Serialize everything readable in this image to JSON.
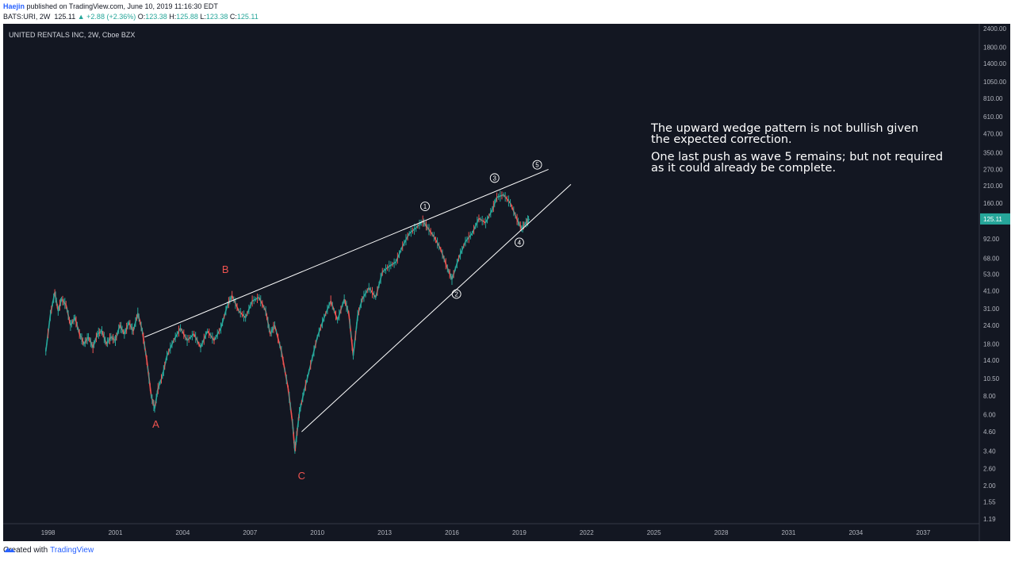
{
  "header": {
    "author": "Haejin",
    "published_text": "published on TradingView.com, June 10, 2019 11:16:30 EDT",
    "symbol": "BATS:URI, 2W",
    "last": "125.11",
    "change": "+2.88 (+2.36%)",
    "open_label": "O:",
    "open": "123.38",
    "high_label": "H:",
    "high": "125.88",
    "low_label": "L:",
    "low": "123.38",
    "close_label": "C:",
    "close": "125.11"
  },
  "chart_title": "UNITED RENTALS INC, 2W, Cboe BZX",
  "footer": {
    "created_with": "Created with",
    "brand": "TradingView"
  },
  "colors": {
    "background": "#131722",
    "up": "#26a69a",
    "down": "#ef5350",
    "line": "#ffffff",
    "grid": "#1e222d",
    "text": "#b2b5be",
    "label_red": "#ef5350"
  },
  "chart_data": {
    "type": "line",
    "scale": "log",
    "title": "UNITED RENTALS INC, 2W, Cboe BZX",
    "xlim": [
      1996.0,
      2039.5
    ],
    "ylim": [
      1.19,
      2400
    ],
    "x_ticks": [
      "1998",
      "2001",
      "2004",
      "2007",
      "2010",
      "2013",
      "2016",
      "2019",
      "2022",
      "2025",
      "2028",
      "2031",
      "2034",
      "2037"
    ],
    "y_ticks": [
      "2400.00",
      "1800.00",
      "1400.00",
      "1050.00",
      "810.00",
      "610.00",
      "470.00",
      "350.00",
      "270.00",
      "210.00",
      "160.00",
      "125.11",
      "92.00",
      "68.00",
      "53.00",
      "41.00",
      "31.00",
      "24.00",
      "18.00",
      "14.00",
      "10.50",
      "8.00",
      "6.00",
      "4.60",
      "3.40",
      "2.60",
      "2.00",
      "1.55",
      "1.19"
    ],
    "last_price": "125.11",
    "series": [
      {
        "x": [
          1997.9,
          1998.1,
          1998.3,
          1998.45,
          1998.6,
          1998.8,
          1999.0,
          1999.2,
          1999.4,
          1999.6,
          1999.8,
          2000.0,
          2000.2,
          2000.4,
          2000.6,
          2000.8,
          2001.0,
          2001.2,
          2001.4,
          2001.6,
          2001.8,
          2002.0,
          2002.2,
          2002.4,
          2002.6,
          2002.75,
          2002.9,
          2003.1,
          2003.3,
          2003.6,
          2003.9,
          2004.2,
          2004.5,
          2004.8,
          2005.1,
          2005.4,
          2005.7,
          2006.0,
          2006.2,
          2006.5,
          2006.8,
          2007.1,
          2007.4,
          2007.7,
          2007.9,
          2008.1,
          2008.4,
          2008.7,
          2008.9,
          2009.0,
          2009.1,
          2009.2,
          2009.4,
          2009.7,
          2010.0,
          2010.3,
          2010.6,
          2010.9,
          2011.2,
          2011.4,
          2011.6,
          2011.8,
          2012.0,
          2012.3,
          2012.6,
          2012.9,
          2013.2,
          2013.5,
          2013.8,
          2014.1,
          2014.4,
          2014.7,
          2014.9,
          2015.2,
          2015.5,
          2015.8,
          2016.0,
          2016.3,
          2016.6,
          2016.9,
          2017.2,
          2017.5,
          2017.8,
          2018.0,
          2018.3,
          2018.6,
          2018.9,
          2019.1,
          2019.3,
          2019.45
        ],
        "y": [
          16,
          28,
          40,
          30,
          36,
          33,
          24,
          27,
          21,
          18,
          20,
          17,
          21,
          22,
          18,
          20,
          19,
          24,
          21,
          25,
          22,
          29,
          22,
          14,
          8,
          6.6,
          9,
          11,
          15,
          19,
          23,
          19,
          21,
          17,
          22,
          19,
          23,
          33,
          38,
          30,
          27,
          35,
          37,
          30,
          21,
          24,
          16,
          9,
          5.2,
          3.4,
          4.6,
          6.2,
          8.5,
          13,
          20,
          27,
          35,
          26,
          36,
          29,
          15,
          28,
          36,
          43,
          37,
          55,
          60,
          64,
          82,
          100,
          109,
          121,
          110,
          95,
          78,
          58,
          49,
          68,
          88,
          100,
          126,
          118,
          145,
          175,
          182,
          160,
          124,
          108,
          118,
          125.11
        ]
      }
    ],
    "annotations": {
      "letters": [
        {
          "label": "A",
          "x": 2002.8,
          "y": 4.9
        },
        {
          "label": "B",
          "x": 2005.9,
          "y": 54
        },
        {
          "label": "C",
          "x": 2009.3,
          "y": 2.2
        }
      ],
      "waves": [
        {
          "label": "1",
          "x": 2014.8,
          "y": 152
        },
        {
          "label": "2",
          "x": 2016.2,
          "y": 39
        },
        {
          "label": "3",
          "x": 2017.9,
          "y": 236
        },
        {
          "label": "4",
          "x": 2019.0,
          "y": 87
        },
        {
          "label": "5",
          "x": 2019.8,
          "y": 290
        }
      ],
      "trendlines": [
        {
          "x1": 2002.3,
          "y1": 20,
          "x2": 2020.3,
          "y2": 270
        },
        {
          "x1": 2009.3,
          "y1": 4.6,
          "x2": 2021.3,
          "y2": 214
        }
      ],
      "note_lines": [
        "The upward wedge pattern is not bullish given",
        "the expected correction.",
        "",
        "One last push as wave 5 remains; but not required",
        "as it could already be complete."
      ]
    }
  }
}
